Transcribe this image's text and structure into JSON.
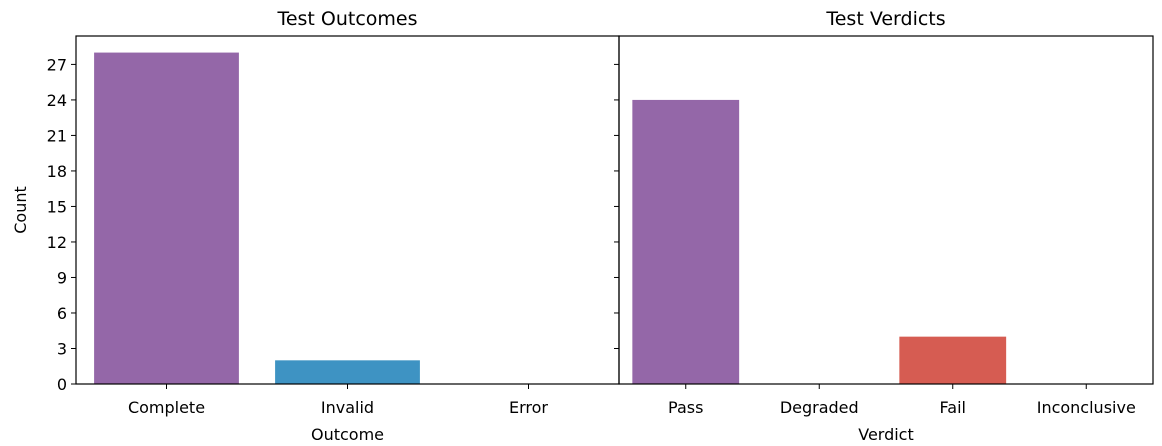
{
  "chart_data": [
    {
      "type": "bar",
      "title": "Test Outcomes",
      "xlabel": "Outcome",
      "ylabel": "Count",
      "categories": [
        "Complete",
        "Invalid",
        "Error"
      ],
      "values": [
        28,
        2,
        0
      ],
      "colors": [
        "#9467a8",
        "#3e93c3",
        "#9467a8"
      ],
      "ylim": [
        0,
        29.4
      ],
      "yticks": [
        0,
        3,
        6,
        9,
        12,
        15,
        18,
        21,
        24,
        27
      ],
      "grid": false
    },
    {
      "type": "bar",
      "title": "Test Verdicts",
      "xlabel": "Verdict",
      "ylabel": "",
      "categories": [
        "Pass",
        "Degraded",
        "Fail",
        "Inconclusive"
      ],
      "values": [
        24,
        0,
        4,
        0
      ],
      "colors": [
        "#9467a8",
        "#9467a8",
        "#d65c52",
        "#9467a8"
      ],
      "ylim": [
        0,
        29.4
      ],
      "yticks": [
        0,
        3,
        6,
        9,
        12,
        15,
        18,
        21,
        24,
        27
      ],
      "grid": false
    }
  ]
}
